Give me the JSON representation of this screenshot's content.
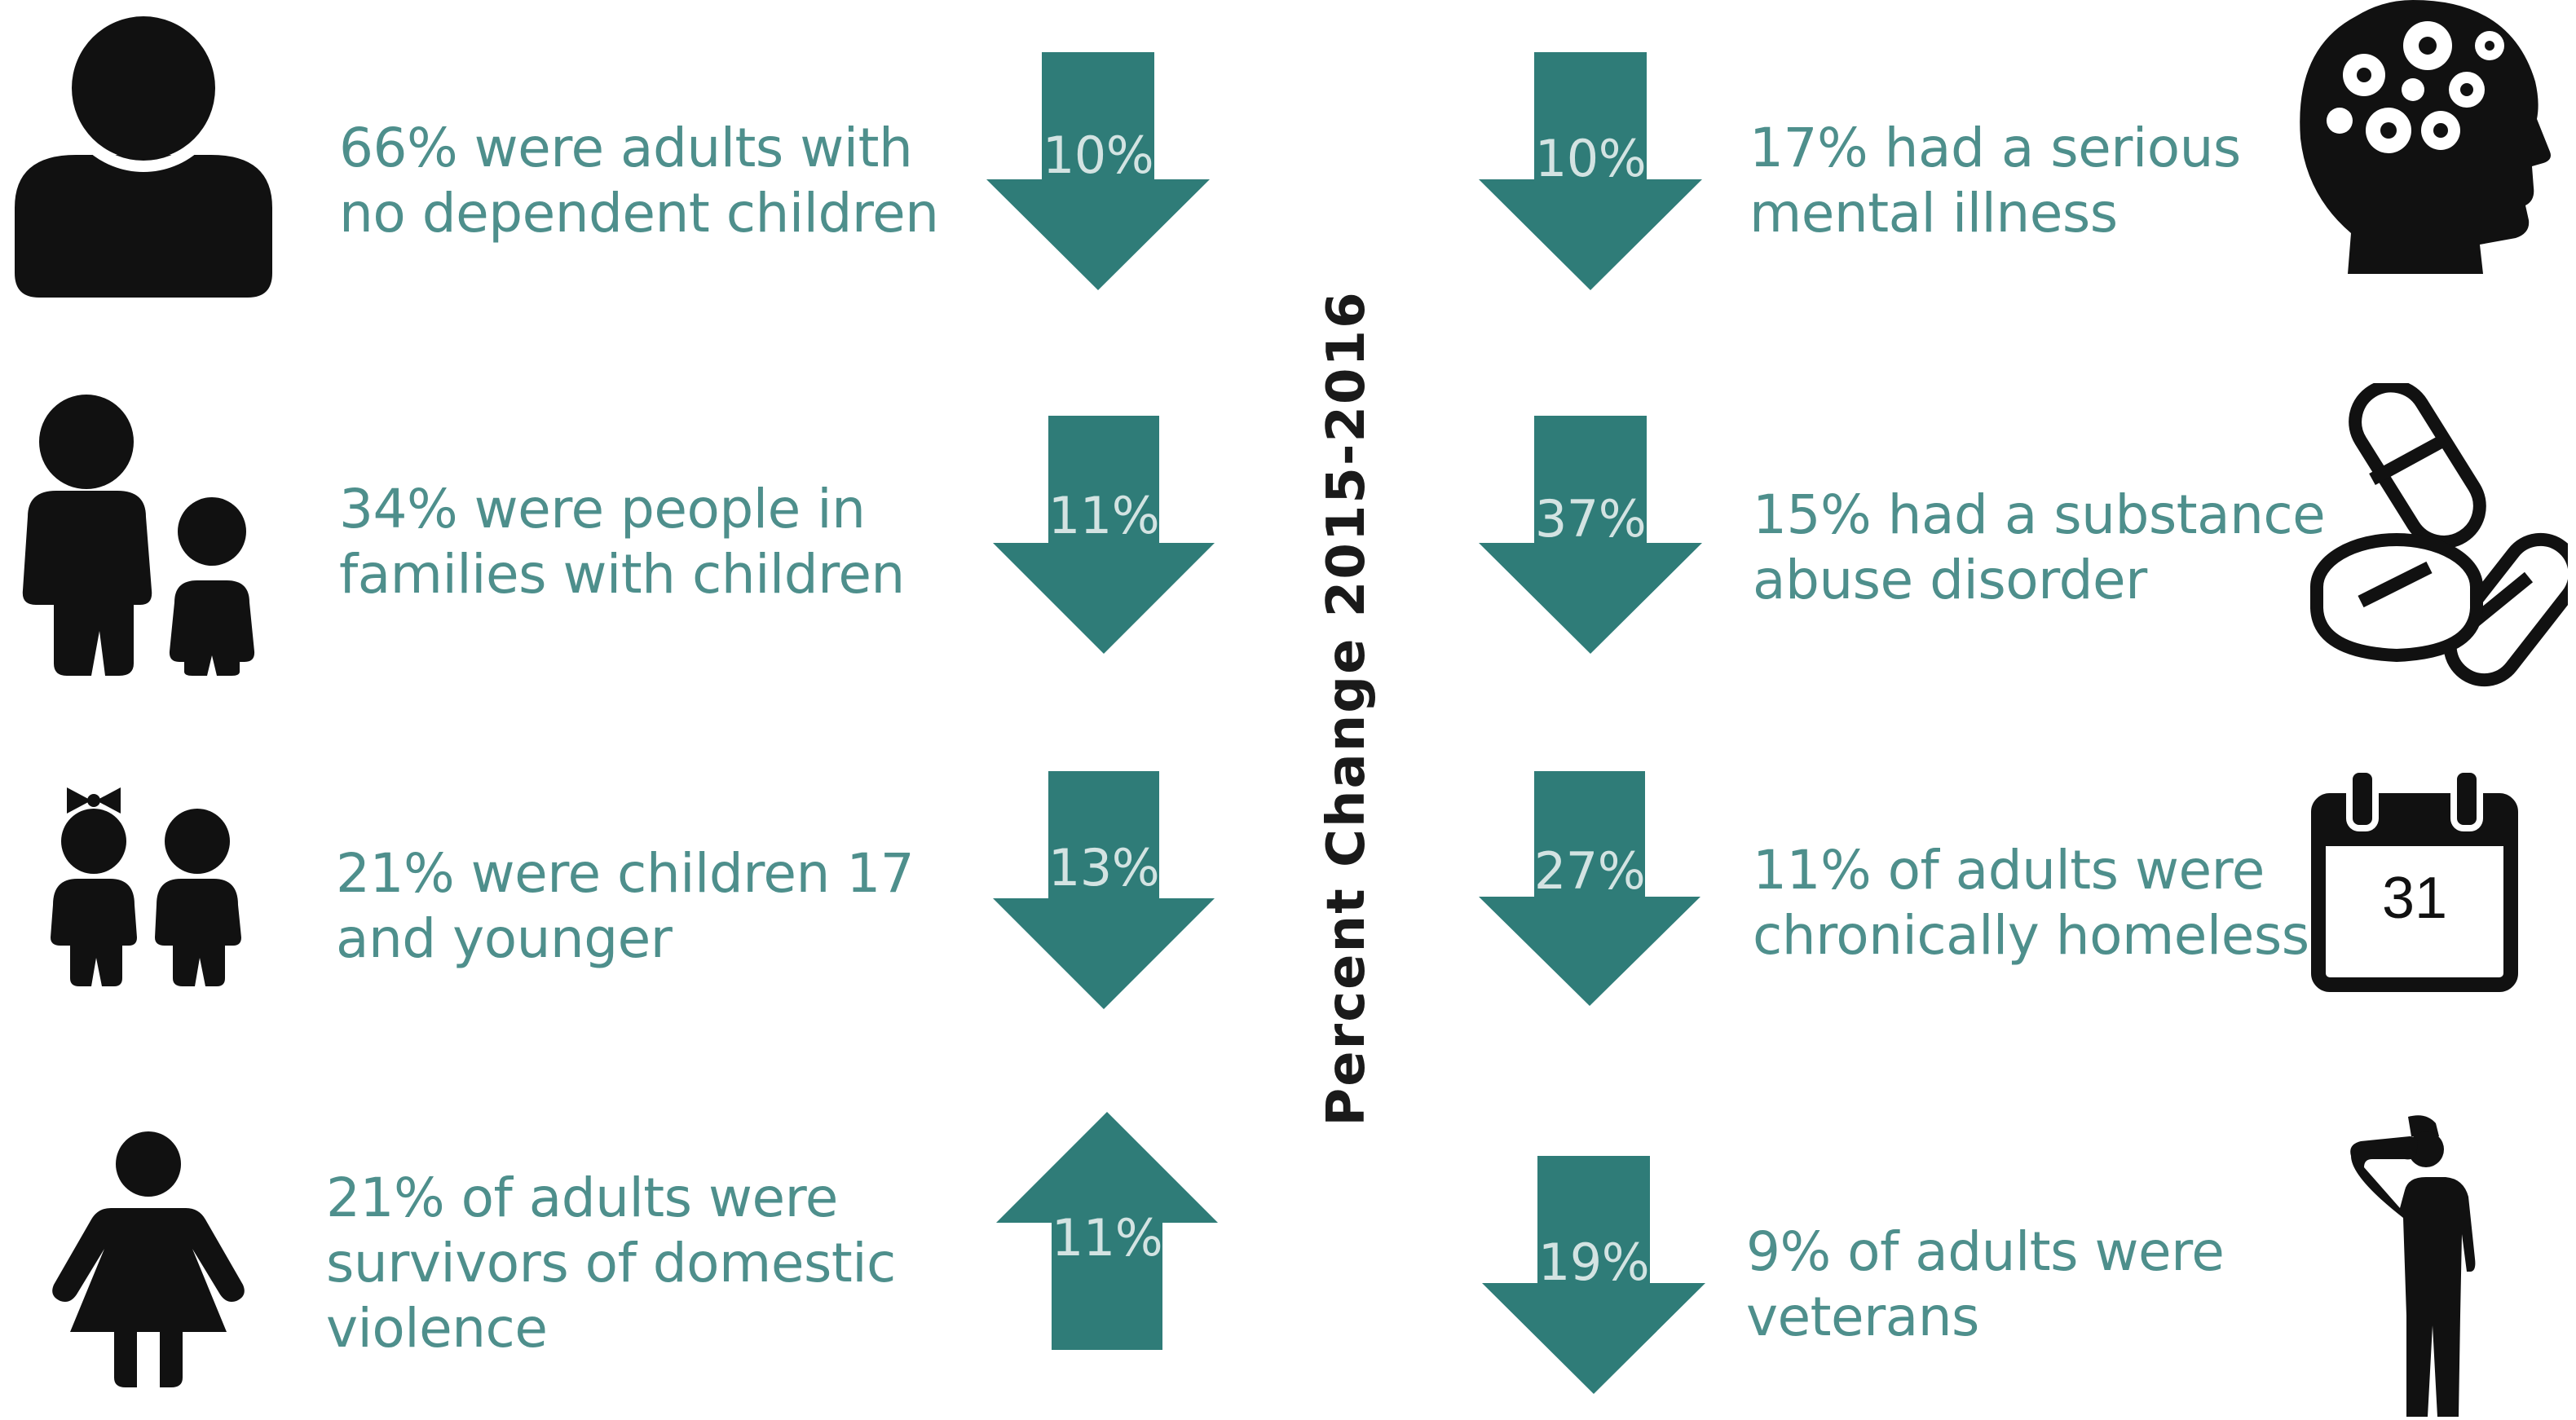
{
  "colors": {
    "arrow": "#2f7c78",
    "text": "#4e8f8c",
    "icon": "#111111",
    "pct_label": "#d3e3e2"
  },
  "axis_title": "Percent Change 2015-2016",
  "left": [
    {
      "icon": "adult-person-icon",
      "lines": [
        "66% were adults with",
        "no dependent children"
      ],
      "change": "10%",
      "direction": "down"
    },
    {
      "icon": "parent-and-child-icon",
      "lines": [
        "34% were people in",
        "families with children"
      ],
      "change": "11%",
      "direction": "down"
    },
    {
      "icon": "two-children-icon",
      "lines": [
        "21% were children 17",
        "and younger"
      ],
      "change": "13%",
      "direction": "down"
    },
    {
      "icon": "woman-icon",
      "lines": [
        "21% of adults were",
        "survivors of domestic",
        "violence"
      ],
      "change": "11%",
      "direction": "up"
    }
  ],
  "right": [
    {
      "icon": "head-gears-icon",
      "lines": [
        "17% had a serious",
        "mental illness"
      ],
      "change": "10%",
      "direction": "down"
    },
    {
      "icon": "pills-icon",
      "lines": [
        "15% had a substance",
        "abuse disorder"
      ],
      "change": "37%",
      "direction": "down"
    },
    {
      "icon": "calendar-icon",
      "calendar_day": "31",
      "lines": [
        "11% of adults were",
        "chronically homeless"
      ],
      "change": "27%",
      "direction": "down"
    },
    {
      "icon": "saluting-soldier-icon",
      "lines": [
        "9% of adults were",
        "veterans"
      ],
      "change": "19%",
      "direction": "down"
    }
  ]
}
